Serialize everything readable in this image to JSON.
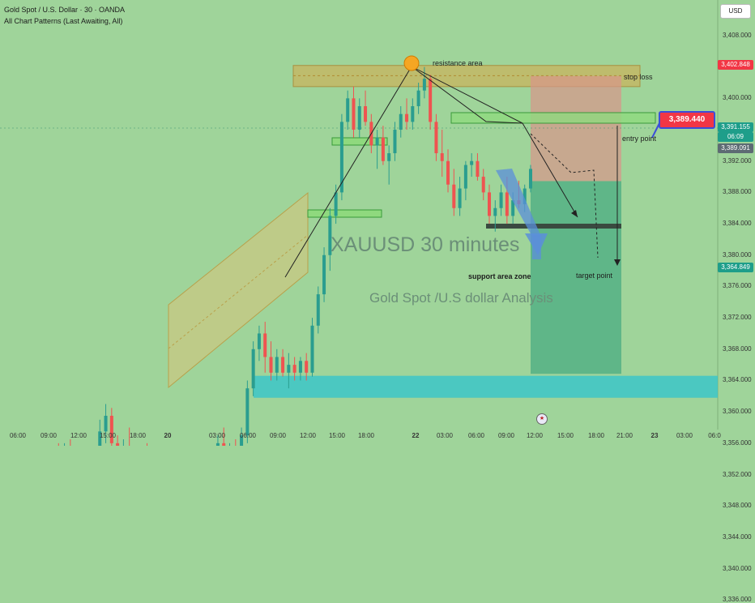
{
  "header": {
    "title": "Gold Spot / U.S. Dollar · 30 · OANDA",
    "indicator": "All Chart Patterns (Last Awaiting, All)"
  },
  "currency": "USD",
  "colors": {
    "background": "#9fd49a",
    "bull": "#2a9d8f",
    "bear": "#ef5350",
    "support_band": "#3cc5c8",
    "stop_zone": "#d9958a",
    "target_zone": "#2a9d7a",
    "resistance_band": "#c8b45e",
    "entry_label": "#f23645"
  },
  "chart_data": {
    "type": "candlestick",
    "symbol": "XAUUSD",
    "timeframe": "30 minutes",
    "ylim": [
      3334,
      3412
    ],
    "y_ticks": [
      "3,408.000",
      "3,404.000",
      "3,400.000",
      "3,396.000",
      "3,392.000",
      "3,388.000",
      "3,384.000",
      "3,380.000",
      "3,376.000",
      "3,372.000",
      "3,368.000",
      "3,364.000",
      "3,360.000",
      "3,356.000",
      "3,352.000",
      "3,348.000",
      "3,344.000",
      "3,340.000",
      "3,336.000"
    ],
    "x_ticks": [
      "06:00",
      "09:00",
      "12:00",
      "15:00",
      "18:00",
      "20",
      "03:00",
      "06:00",
      "09:00",
      "12:00",
      "15:00",
      "18:00",
      "22",
      "03:00",
      "06:00",
      "09:00",
      "12:00",
      "15:00",
      "18:00",
      "21:00",
      "23",
      "03:00",
      "06:0"
    ],
    "price_labels": {
      "stop_loss": "3,402.848",
      "entry": "3,389.440",
      "last_price": "3,391.155",
      "countdown": "06:09",
      "last_close": "3,389.091",
      "target": "3,364.849"
    },
    "levels": {
      "resistance_area": [
        3401.5,
        3403.5
      ],
      "stop_loss": 3402.848,
      "entry": 3389.44,
      "target": 3364.849,
      "support_area": [
        3362,
        3366
      ],
      "breakdown_line": 3383.5
    },
    "candles": [
      [
        3333.0,
        3340.0,
        3332.0,
        3339.0
      ],
      [
        3339.0,
        3340.5,
        3335.0,
        3336.0
      ],
      [
        3336.0,
        3344.0,
        3335.5,
        3343.0
      ],
      [
        3343.0,
        3346.0,
        3341.0,
        3342.0
      ],
      [
        3342.0,
        3349.0,
        3341.0,
        3348.0
      ],
      [
        3348.0,
        3352.0,
        3346.0,
        3351.0
      ],
      [
        3351.0,
        3352.0,
        3347.0,
        3348.0
      ],
      [
        3348.0,
        3355.0,
        3347.5,
        3354.0
      ],
      [
        3354.0,
        3356.0,
        3351.0,
        3352.5
      ],
      [
        3352.5,
        3356.0,
        3351.0,
        3355.0
      ],
      [
        3355.0,
        3356.5,
        3349.0,
        3350.0
      ],
      [
        3350.0,
        3351.0,
        3345.0,
        3347.0
      ],
      [
        3347.0,
        3352.0,
        3346.5,
        3351.0
      ],
      [
        3351.0,
        3354.0,
        3348.5,
        3349.0
      ],
      [
        3349.0,
        3355.0,
        3348.0,
        3354.0
      ],
      [
        3354.0,
        3359.0,
        3353.0,
        3357.5
      ],
      [
        3357.5,
        3361.0,
        3356.0,
        3359.5
      ],
      [
        3359.5,
        3360.5,
        3355.0,
        3356.0
      ],
      [
        3356.0,
        3357.0,
        3351.0,
        3352.0
      ],
      [
        3352.0,
        3356.5,
        3351.5,
        3355.5
      ],
      [
        3355.5,
        3358.0,
        3352.0,
        3353.0
      ],
      [
        3353.0,
        3354.5,
        3350.0,
        3351.0
      ],
      [
        3351.0,
        3355.0,
        3350.5,
        3354.0
      ],
      [
        3354.0,
        3356.0,
        3350.0,
        3351.0
      ],
      [
        3351.0,
        3352.0,
        3347.0,
        3348.0
      ],
      [
        3348.0,
        3352.0,
        3347.5,
        3351.0
      ],
      [
        3351.0,
        3354.0,
        3349.5,
        3350.0
      ],
      [
        3350.0,
        3351.5,
        3346.5,
        3347.0
      ],
      [
        3347.0,
        3350.0,
        3343.0,
        3349.0
      ],
      [
        3349.0,
        3351.0,
        3345.0,
        3346.0
      ],
      [
        3346.0,
        3347.0,
        3342.5,
        3344.0
      ],
      [
        3344.0,
        3348.0,
        3343.5,
        3347.0
      ],
      [
        3347.0,
        3352.0,
        3346.0,
        3351.0
      ],
      [
        3351.0,
        3355.0,
        3349.5,
        3354.0
      ],
      [
        3354.0,
        3355.5,
        3350.0,
        3351.0
      ],
      [
        3351.0,
        3357.0,
        3350.5,
        3356.0
      ],
      [
        3356.0,
        3358.0,
        3352.0,
        3353.0
      ],
      [
        3353.0,
        3356.0,
        3351.5,
        3355.0
      ],
      [
        3355.0,
        3356.5,
        3350.0,
        3351.0
      ],
      [
        3351.0,
        3358.0,
        3350.5,
        3357.0
      ],
      [
        3357.0,
        3364.0,
        3356.0,
        3363.0
      ],
      [
        3363.0,
        3369.0,
        3362.0,
        3368.0
      ],
      [
        3368.0,
        3371.0,
        3366.5,
        3370.0
      ],
      [
        3370.0,
        3371.5,
        3365.0,
        3367.0
      ],
      [
        3367.0,
        3369.0,
        3364.0,
        3365.0
      ],
      [
        3365.0,
        3368.0,
        3364.0,
        3367.0
      ],
      [
        3367.0,
        3368.0,
        3364.5,
        3365.0
      ],
      [
        3365.0,
        3367.5,
        3363.0,
        3366.0
      ],
      [
        3366.0,
        3367.0,
        3364.0,
        3365.0
      ],
      [
        3365.0,
        3367.0,
        3364.0,
        3366.5
      ],
      [
        3366.5,
        3367.5,
        3364.0,
        3365.0
      ],
      [
        3365.0,
        3372.0,
        3364.5,
        3371.0
      ],
      [
        3371.0,
        3376.0,
        3370.0,
        3375.0
      ],
      [
        3375.0,
        3381.0,
        3374.0,
        3380.0
      ],
      [
        3380.0,
        3386.0,
        3378.0,
        3385.0
      ],
      [
        3385.0,
        3389.0,
        3384.0,
        3388.0
      ],
      [
        3388.0,
        3398.0,
        3387.0,
        3397.0
      ],
      [
        3397.0,
        3401.0,
        3396.0,
        3400.0
      ],
      [
        3400.0,
        3401.5,
        3395.0,
        3396.0
      ],
      [
        3396.0,
        3400.0,
        3395.0,
        3399.0
      ],
      [
        3399.0,
        3401.0,
        3396.5,
        3397.0
      ],
      [
        3397.0,
        3398.0,
        3393.0,
        3394.0
      ],
      [
        3394.0,
        3396.0,
        3391.0,
        3395.0
      ],
      [
        3395.0,
        3396.5,
        3391.5,
        3392.0
      ],
      [
        3392.0,
        3394.0,
        3389.0,
        3393.0
      ],
      [
        3393.0,
        3397.0,
        3392.0,
        3396.0
      ],
      [
        3396.0,
        3399.0,
        3395.0,
        3398.0
      ],
      [
        3398.0,
        3400.0,
        3396.0,
        3397.0
      ],
      [
        3397.0,
        3400.0,
        3396.0,
        3399.0
      ],
      [
        3399.0,
        3402.0,
        3398.0,
        3401.0
      ],
      [
        3401.0,
        3404.0,
        3400.0,
        3402.5
      ],
      [
        3402.5,
        3403.0,
        3396.0,
        3397.0
      ],
      [
        3397.0,
        3398.0,
        3392.0,
        3393.0
      ],
      [
        3393.0,
        3396.0,
        3390.0,
        3392.0
      ],
      [
        3392.0,
        3393.5,
        3388.0,
        3389.0
      ],
      [
        3389.0,
        3391.0,
        3385.0,
        3386.0
      ],
      [
        3386.0,
        3390.0,
        3385.0,
        3388.5
      ],
      [
        3388.5,
        3392.0,
        3387.0,
        3391.5
      ],
      [
        3391.5,
        3393.0,
        3390.0,
        3392.0
      ],
      [
        3392.0,
        3393.0,
        3389.5,
        3390.0
      ],
      [
        3390.0,
        3391.0,
        3387.0,
        3388.0
      ],
      [
        3388.0,
        3389.0,
        3384.0,
        3385.0
      ],
      [
        3385.0,
        3387.0,
        3383.0,
        3386.0
      ],
      [
        3386.0,
        3389.0,
        3385.0,
        3388.0
      ],
      [
        3388.0,
        3390.0,
        3384.0,
        3385.0
      ],
      [
        3385.0,
        3388.0,
        3384.0,
        3387.0
      ],
      [
        3387.0,
        3389.5,
        3386.0,
        3386.5
      ],
      [
        3386.5,
        3389.0,
        3385.5,
        3388.5
      ],
      [
        3388.5,
        3391.5,
        3388.0,
        3391.0
      ]
    ]
  },
  "annotations": {
    "resistance": "resistance area",
    "stop_loss": "stop loss",
    "entry_point": "entry point",
    "support": "support area zone",
    "target_point": "target point",
    "big_title": "XAUUSD 30 minutes",
    "subtitle": "Gold Spot /U.S dollar Analysis"
  },
  "events_icon": "us-flag-icon"
}
